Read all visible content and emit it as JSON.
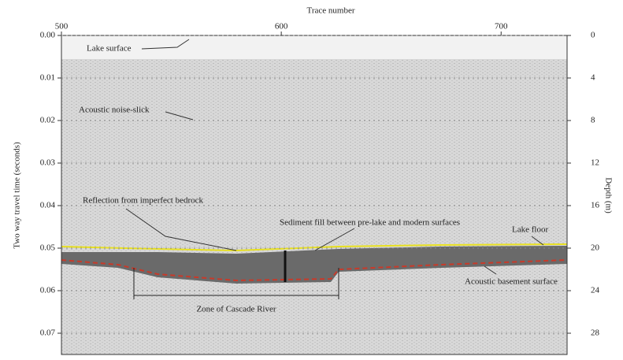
{
  "chart_data": {
    "type": "profile",
    "x_label": "Trace number",
    "y_label": "Two way travel time (seconds)",
    "y2_label": "Depth (m)",
    "xlim": [
      500,
      730
    ],
    "xticks": [
      500,
      600,
      700
    ],
    "ylim": [
      0,
      0.075
    ],
    "yticks": [
      {
        "value": 0,
        "label": "0.00"
      },
      0.01,
      0.02,
      0.03,
      0.04,
      0.05,
      0.06,
      0.07
    ],
    "y2lim": [
      0,
      30
    ],
    "y2ticks": [
      0,
      4,
      8,
      12,
      16,
      20,
      24,
      28
    ],
    "annotations": [
      "Lake surface",
      "Acoustic noise-slick",
      "Reflection from imperfect bedrock",
      "Sediment fill between pre-lake and modern surfaces",
      "Lake floor",
      "Zone of Cascade River",
      "Acoustic basement surface"
    ]
  }
}
